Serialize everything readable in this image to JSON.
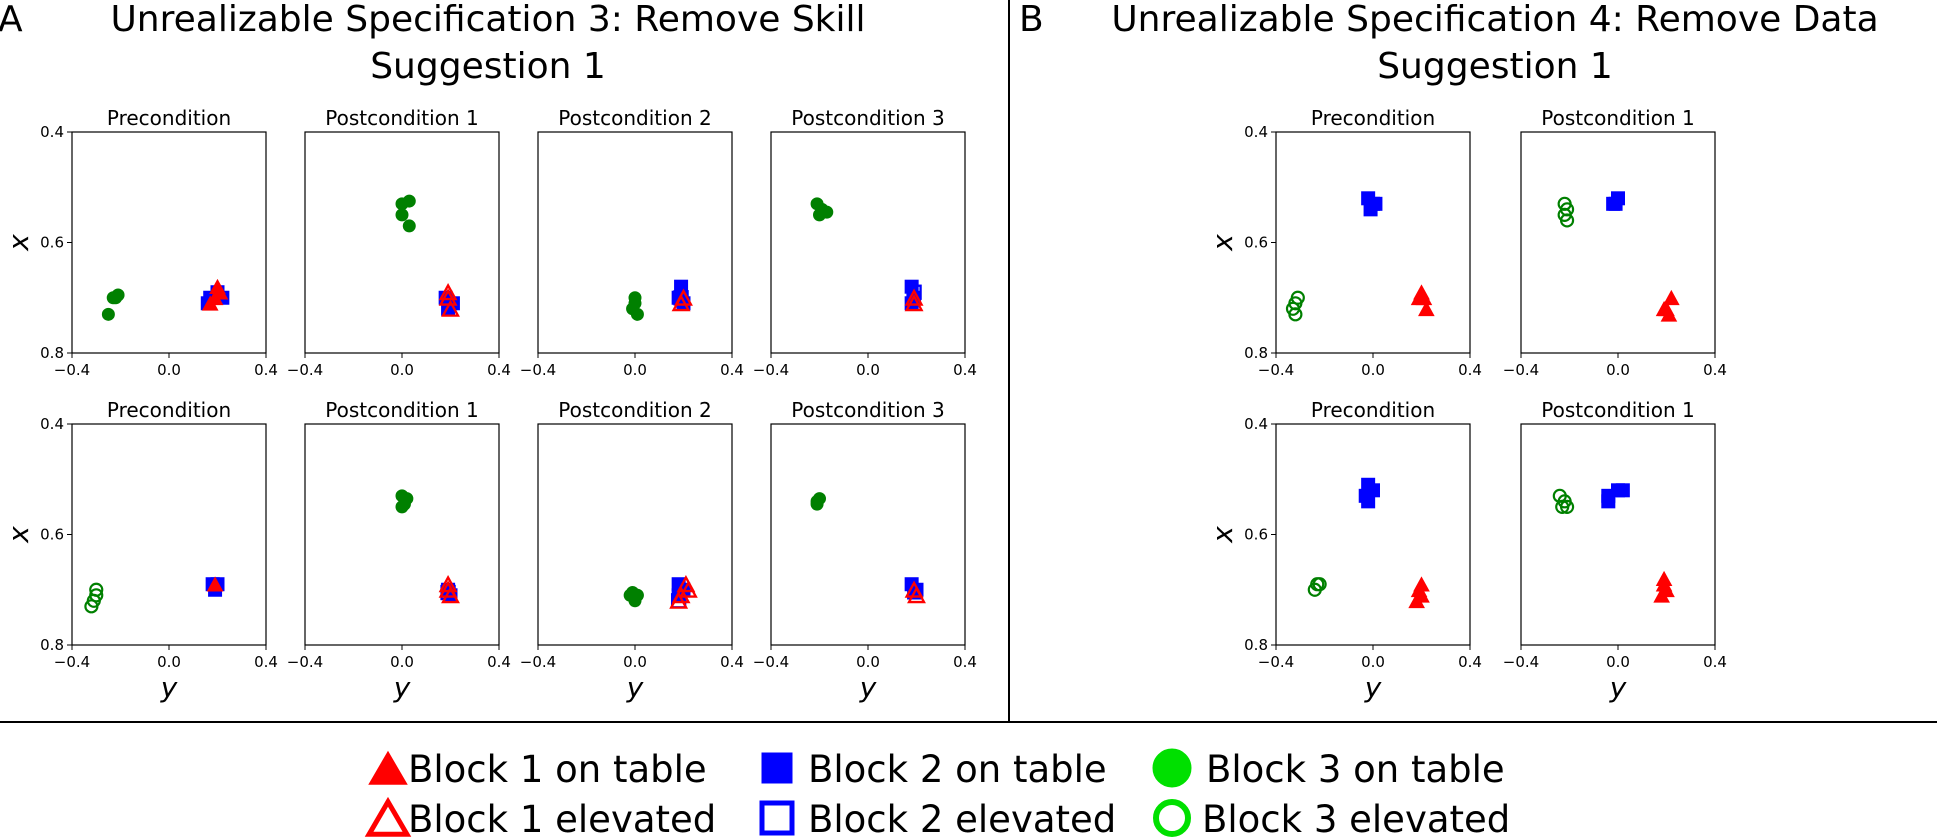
{
  "colors": {
    "block1": "#ff0000",
    "block2": "#0000ff",
    "block3_plot": "#008000",
    "block3_legend": "#00e000"
  },
  "panels": [
    {
      "letter": "A",
      "title_line1": "Unrealizable Specification 3: Remove Skill",
      "title_line2": "Suggestion 1"
    },
    {
      "letter": "B",
      "title_line1": "Unrealizable Specification 4: Remove Data",
      "title_line2": "Suggestion 1"
    }
  ],
  "legend": [
    {
      "label": "Block 1 on table",
      "marker": "triangle",
      "filled": true,
      "color": "#ff0000"
    },
    {
      "label": "Block 2 on table",
      "marker": "square",
      "filled": true,
      "color": "#0000ff"
    },
    {
      "label": "Block 3 on table",
      "marker": "circle",
      "filled": true,
      "color": "#00e000"
    },
    {
      "label": "Block 1 elevated",
      "marker": "triangle",
      "filled": false,
      "color": "#ff0000"
    },
    {
      "label": "Block 2 elevated",
      "marker": "square",
      "filled": false,
      "color": "#0000ff"
    },
    {
      "label": "Block 3 elevated",
      "marker": "circle",
      "filled": false,
      "color": "#00e000"
    }
  ],
  "chart_data": [
    {
      "type": "scatter",
      "panel": "A",
      "row": 1,
      "title": "Precondition",
      "xlabel": "",
      "ylabel": "x",
      "xlim": [
        -0.4,
        0.4
      ],
      "ylim": [
        0.8,
        0.4
      ],
      "xticks": [
        "−0.4",
        "0.0",
        "0.4"
      ],
      "yticks": [
        "0.4",
        "0.6",
        "0.8"
      ],
      "points": [
        {
          "block": 1,
          "state": "table",
          "pts": [
            [
              0.19,
              0.7
            ],
            [
              0.21,
              0.69
            ],
            [
              0.17,
              0.71
            ],
            [
              0.2,
              0.68
            ]
          ]
        },
        {
          "block": 2,
          "state": "table",
          "pts": [
            [
              0.17,
              0.7
            ],
            [
              0.2,
              0.69
            ],
            [
              0.22,
              0.7
            ],
            [
              0.16,
              0.71
            ]
          ]
        },
        {
          "block": 3,
          "state": "table",
          "pts": [
            [
              -0.23,
              0.7
            ],
            [
              -0.21,
              0.695
            ],
            [
              -0.25,
              0.73
            ],
            [
              -0.22,
              0.7
            ]
          ]
        }
      ]
    },
    {
      "type": "scatter",
      "panel": "A",
      "row": 1,
      "title": "Postcondition 1",
      "xlabel": "",
      "ylabel": "",
      "xlim": [
        -0.4,
        0.4
      ],
      "ylim": [
        0.8,
        0.4
      ],
      "xticks": [
        "−0.4",
        "0.0",
        "0.4"
      ],
      "yticks": [],
      "points": [
        {
          "block": 1,
          "state": "elevated",
          "pts": [
            [
              0.19,
              0.7
            ],
            [
              0.2,
              0.72
            ],
            [
              0.19,
              0.69
            ]
          ]
        },
        {
          "block": 2,
          "state": "table",
          "pts": [
            [
              0.18,
              0.7
            ],
            [
              0.21,
              0.71
            ],
            [
              0.19,
              0.72
            ]
          ]
        },
        {
          "block": 3,
          "state": "table",
          "pts": [
            [
              0.0,
              0.53
            ],
            [
              0.03,
              0.525
            ],
            [
              0.0,
              0.55
            ],
            [
              0.03,
              0.57
            ]
          ]
        }
      ]
    },
    {
      "type": "scatter",
      "panel": "A",
      "row": 1,
      "title": "Postcondition 2",
      "xlabel": "",
      "ylabel": "",
      "xlim": [
        -0.4,
        0.4
      ],
      "ylim": [
        0.8,
        0.4
      ],
      "xticks": [
        "−0.4",
        "0.0",
        "0.4"
      ],
      "yticks": [],
      "points": [
        {
          "block": 1,
          "state": "elevated",
          "pts": [
            [
              0.19,
              0.71
            ],
            [
              0.2,
              0.7
            ]
          ]
        },
        {
          "block": 2,
          "state": "table",
          "pts": [
            [
              0.19,
              0.68
            ],
            [
              0.2,
              0.71
            ],
            [
              0.18,
              0.7
            ]
          ]
        },
        {
          "block": 2,
          "state": "elevated",
          "pts": [
            [
              0.19,
              0.7
            ]
          ]
        },
        {
          "block": 3,
          "state": "table",
          "pts": [
            [
              0.0,
              0.7
            ],
            [
              -0.01,
              0.72
            ],
            [
              0.0,
              0.71
            ],
            [
              0.01,
              0.73
            ]
          ]
        }
      ]
    },
    {
      "type": "scatter",
      "panel": "A",
      "row": 1,
      "title": "Postcondition 3",
      "xlabel": "",
      "ylabel": "",
      "xlim": [
        -0.4,
        0.4
      ],
      "ylim": [
        0.8,
        0.4
      ],
      "xticks": [
        "−0.4",
        "0.0",
        "0.4"
      ],
      "yticks": [],
      "points": [
        {
          "block": 1,
          "state": "elevated",
          "pts": [
            [
              0.19,
              0.7
            ],
            [
              0.19,
              0.71
            ]
          ]
        },
        {
          "block": 2,
          "state": "table",
          "pts": [
            [
              0.18,
              0.68
            ],
            [
              0.19,
              0.7
            ],
            [
              0.18,
              0.71
            ]
          ]
        },
        {
          "block": 2,
          "state": "elevated",
          "pts": [
            [
              0.19,
              0.69
            ]
          ]
        },
        {
          "block": 3,
          "state": "table",
          "pts": [
            [
              -0.21,
              0.53
            ],
            [
              -0.19,
              0.54
            ],
            [
              -0.2,
              0.55
            ],
            [
              -0.17,
              0.545
            ]
          ]
        }
      ]
    },
    {
      "type": "scatter",
      "panel": "A",
      "row": 2,
      "title": "Precondition",
      "xlabel": "y",
      "ylabel": "x",
      "xlim": [
        -0.4,
        0.4
      ],
      "ylim": [
        0.8,
        0.4
      ],
      "xticks": [
        "−0.4",
        "0.0",
        "0.4"
      ],
      "yticks": [
        "0.4",
        "0.6",
        "0.8"
      ],
      "points": [
        {
          "block": 1,
          "state": "table",
          "pts": [
            [
              0.19,
              0.69
            ]
          ]
        },
        {
          "block": 2,
          "state": "table",
          "pts": [
            [
              0.18,
              0.69
            ],
            [
              0.2,
              0.69
            ],
            [
              0.19,
              0.7
            ]
          ]
        },
        {
          "block": 3,
          "state": "elevated",
          "pts": [
            [
              -0.3,
              0.71
            ],
            [
              -0.32,
              0.73
            ],
            [
              -0.31,
              0.72
            ],
            [
              -0.3,
              0.7
            ]
          ]
        }
      ]
    },
    {
      "type": "scatter",
      "panel": "A",
      "row": 2,
      "title": "Postcondition 1",
      "xlabel": "y",
      "ylabel": "",
      "xlim": [
        -0.4,
        0.4
      ],
      "ylim": [
        0.8,
        0.4
      ],
      "xticks": [
        "−0.4",
        "0.0",
        "0.4"
      ],
      "yticks": [],
      "points": [
        {
          "block": 1,
          "state": "elevated",
          "pts": [
            [
              0.19,
              0.69
            ],
            [
              0.19,
              0.7
            ],
            [
              0.2,
              0.71
            ]
          ]
        },
        {
          "block": 2,
          "state": "table",
          "pts": [
            [
              0.19,
              0.7
            ],
            [
              0.2,
              0.71
            ]
          ]
        },
        {
          "block": 2,
          "state": "elevated",
          "pts": [
            [
              0.19,
              0.705
            ]
          ]
        },
        {
          "block": 3,
          "state": "table",
          "pts": [
            [
              0.0,
              0.53
            ],
            [
              0.02,
              0.535
            ],
            [
              0.0,
              0.55
            ],
            [
              0.01,
              0.545
            ]
          ]
        }
      ]
    },
    {
      "type": "scatter",
      "panel": "A",
      "row": 2,
      "title": "Postcondition 2",
      "xlabel": "y",
      "ylabel": "",
      "xlim": [
        -0.4,
        0.4
      ],
      "ylim": [
        0.8,
        0.4
      ],
      "xticks": [
        "−0.4",
        "0.0",
        "0.4"
      ],
      "yticks": [],
      "points": [
        {
          "block": 1,
          "state": "elevated",
          "pts": [
            [
              0.19,
              0.71
            ],
            [
              0.22,
              0.7
            ],
            [
              0.18,
              0.72
            ],
            [
              0.21,
              0.69
            ]
          ]
        },
        {
          "block": 2,
          "state": "table",
          "pts": [
            [
              0.18,
              0.69
            ],
            [
              0.2,
              0.7
            ],
            [
              0.18,
              0.71
            ]
          ]
        },
        {
          "block": 2,
          "state": "elevated",
          "pts": [
            [
              0.18,
              0.72
            ]
          ]
        },
        {
          "block": 3,
          "state": "table",
          "pts": [
            [
              -0.01,
              0.705
            ],
            [
              0.01,
              0.71
            ],
            [
              0.0,
              0.72
            ],
            [
              -0.02,
              0.71
            ]
          ]
        }
      ]
    },
    {
      "type": "scatter",
      "panel": "A",
      "row": 2,
      "title": "Postcondition 3",
      "xlabel": "y",
      "ylabel": "",
      "xlim": [
        -0.4,
        0.4
      ],
      "ylim": [
        0.8,
        0.4
      ],
      "xticks": [
        "−0.4",
        "0.0",
        "0.4"
      ],
      "yticks": [],
      "points": [
        {
          "block": 1,
          "state": "elevated",
          "pts": [
            [
              0.19,
              0.7
            ],
            [
              0.2,
              0.71
            ]
          ]
        },
        {
          "block": 2,
          "state": "table",
          "pts": [
            [
              0.18,
              0.69
            ],
            [
              0.2,
              0.7
            ],
            [
              0.19,
              0.705
            ]
          ]
        },
        {
          "block": 3,
          "state": "table",
          "pts": [
            [
              -0.21,
              0.54
            ],
            [
              -0.2,
              0.535
            ],
            [
              -0.21,
              0.545
            ]
          ]
        }
      ]
    },
    {
      "type": "scatter",
      "panel": "B",
      "row": 1,
      "title": "Precondition",
      "xlabel": "",
      "ylabel": "x",
      "xlim": [
        -0.4,
        0.4
      ],
      "ylim": [
        0.8,
        0.4
      ],
      "xticks": [
        "−0.4",
        "0.0",
        "0.4"
      ],
      "yticks": [
        "0.4",
        "0.6",
        "0.8"
      ],
      "points": [
        {
          "block": 1,
          "state": "table",
          "pts": [
            [
              0.2,
              0.69
            ],
            [
              0.22,
              0.72
            ],
            [
              0.19,
              0.7
            ],
            [
              0.21,
              0.7
            ]
          ]
        },
        {
          "block": 2,
          "state": "table",
          "pts": [
            [
              -0.02,
              0.52
            ],
            [
              0.0,
              0.53
            ],
            [
              -0.01,
              0.54
            ],
            [
              0.01,
              0.53
            ]
          ]
        },
        {
          "block": 3,
          "state": "elevated",
          "pts": [
            [
              -0.32,
              0.71
            ],
            [
              -0.33,
              0.72
            ],
            [
              -0.32,
              0.73
            ],
            [
              -0.31,
              0.7
            ]
          ]
        }
      ]
    },
    {
      "type": "scatter",
      "panel": "B",
      "row": 1,
      "title": "Postcondition 1",
      "xlabel": "",
      "ylabel": "",
      "xlim": [
        -0.4,
        0.4
      ],
      "ylim": [
        0.8,
        0.4
      ],
      "xticks": [
        "−0.4",
        "0.0",
        "0.4"
      ],
      "yticks": [],
      "points": [
        {
          "block": 1,
          "state": "table",
          "pts": [
            [
              0.19,
              0.72
            ],
            [
              0.21,
              0.73
            ],
            [
              0.22,
              0.7
            ],
            [
              0.2,
              0.72
            ]
          ]
        },
        {
          "block": 2,
          "state": "table",
          "pts": [
            [
              -0.02,
              0.53
            ],
            [
              0.0,
              0.52
            ],
            [
              -0.01,
              0.53
            ]
          ]
        },
        {
          "block": 3,
          "state": "elevated",
          "pts": [
            [
              -0.22,
              0.53
            ],
            [
              -0.21,
              0.54
            ],
            [
              -0.22,
              0.55
            ],
            [
              -0.21,
              0.56
            ]
          ]
        }
      ]
    },
    {
      "type": "scatter",
      "panel": "B",
      "row": 2,
      "title": "Precondition",
      "xlabel": "y",
      "ylabel": "x",
      "xlim": [
        -0.4,
        0.4
      ],
      "ylim": [
        0.8,
        0.4
      ],
      "xticks": [
        "−0.4",
        "0.0",
        "0.4"
      ],
      "yticks": [
        "0.4",
        "0.6",
        "0.8"
      ],
      "points": [
        {
          "block": 1,
          "state": "table",
          "pts": [
            [
              0.2,
              0.69
            ],
            [
              0.19,
              0.7
            ],
            [
              0.18,
              0.72
            ],
            [
              0.2,
              0.71
            ]
          ]
        },
        {
          "block": 2,
          "state": "table",
          "pts": [
            [
              -0.02,
              0.51
            ],
            [
              0.0,
              0.52
            ],
            [
              -0.03,
              0.53
            ],
            [
              -0.02,
              0.54
            ]
          ]
        },
        {
          "block": 3,
          "state": "elevated",
          "pts": [
            [
              -0.24,
              0.7
            ],
            [
              -0.22,
              0.69
            ],
            [
              -0.23,
              0.69
            ]
          ]
        }
      ]
    },
    {
      "type": "scatter",
      "panel": "B",
      "row": 2,
      "title": "Postcondition 1",
      "xlabel": "y",
      "ylabel": "",
      "xlim": [
        -0.4,
        0.4
      ],
      "ylim": [
        0.8,
        0.4
      ],
      "xticks": [
        "−0.4",
        "0.0",
        "0.4"
      ],
      "yticks": [],
      "points": [
        {
          "block": 1,
          "state": "table",
          "pts": [
            [
              0.19,
              0.68
            ],
            [
              0.2,
              0.7
            ],
            [
              0.18,
              0.71
            ],
            [
              0.19,
              0.69
            ]
          ]
        },
        {
          "block": 2,
          "state": "table",
          "pts": [
            [
              -0.04,
              0.53
            ],
            [
              0.0,
              0.52
            ],
            [
              0.02,
              0.52
            ],
            [
              -0.04,
              0.54
            ]
          ]
        },
        {
          "block": 3,
          "state": "elevated",
          "pts": [
            [
              -0.24,
              0.53
            ],
            [
              -0.22,
              0.54
            ],
            [
              -0.23,
              0.55
            ],
            [
              -0.21,
              0.55
            ]
          ]
        }
      ]
    }
  ]
}
